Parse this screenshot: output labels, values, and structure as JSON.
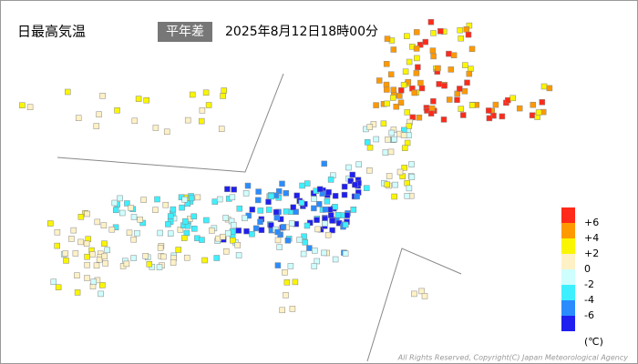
{
  "header": {
    "title": "日最高気温",
    "mode": "平年差",
    "datetime": "2025年8月12日18時00分"
  },
  "legend": {
    "colors": [
      "#ff2a1a",
      "#ff9900",
      "#faf500",
      "#fff1c6",
      "#cefefe",
      "#3ef0ff",
      "#2a8cff",
      "#1f1ff0"
    ],
    "labels": [
      "+6",
      "+4",
      "+2",
      "0",
      "-2",
      "-4",
      "-6"
    ],
    "unit": "(℃)"
  },
  "footer": {
    "copyright": "All Rights Reserved, Copyright(C) Japan Meteorological Agency"
  }
}
